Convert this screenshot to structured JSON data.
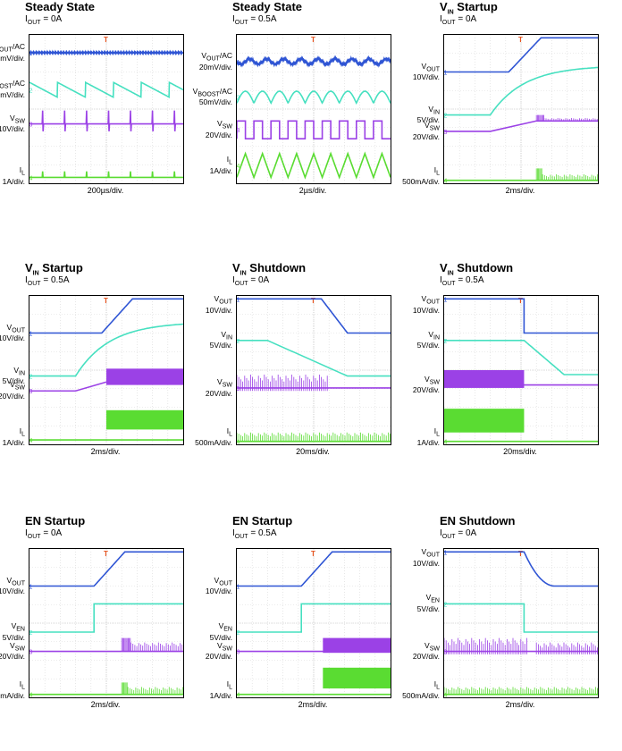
{
  "chart_data": [
    {
      "type": "line",
      "title": "Steady State",
      "condition": "IOUT = 0A",
      "xlabel": "200µs/div.",
      "channels": [
        {
          "label_main": "VOUT/AC",
          "label_sub": "20mV/div.",
          "color": "#2f55d4",
          "marker": "1",
          "kind": "flat_noise",
          "level": 0.12
        },
        {
          "label_main": "VBOOST/AC",
          "label_sub": "50mV/div.",
          "color": "#46e0c0",
          "marker": "2",
          "kind": "saw_down",
          "level": 0.37,
          "periods": 5.5
        },
        {
          "label_main": "VSW",
          "label_sub": "10V/div.",
          "color": "#9b41e6",
          "marker": "3",
          "kind": "spikes",
          "level": 0.6,
          "periods": 7
        },
        {
          "label_main": "IL",
          "label_sub": "1A/div.",
          "color": "#5adc32",
          "marker": "4",
          "kind": "flat_spikes",
          "level": 0.96,
          "periods": 7
        }
      ]
    },
    {
      "type": "line",
      "title": "Steady State",
      "condition": "IOUT = 0.5A",
      "xlabel": "2µs/div.",
      "channels": [
        {
          "label_main": "VOUT/AC",
          "label_sub": "20mV/div.",
          "color": "#2f55d4",
          "marker": "1",
          "kind": "wobble",
          "level": 0.18,
          "periods": 9
        },
        {
          "label_main": "VBOOST/AC",
          "label_sub": "50mV/div.",
          "color": "#46e0c0",
          "marker": "2",
          "kind": "bumps",
          "level": 0.42,
          "periods": 9
        },
        {
          "label_main": "VSW",
          "label_sub": "20V/div.",
          "color": "#9b41e6",
          "marker": "3",
          "kind": "square",
          "level": 0.64,
          "periods": 9
        },
        {
          "label_main": "IL",
          "label_sub": "1A/div.",
          "color": "#5adc32",
          "marker": "4",
          "kind": "triangle",
          "level": 0.88,
          "periods": 9
        }
      ]
    },
    {
      "type": "line",
      "title": "VIN Startup",
      "condition": "IOUT = 0A",
      "xlabel": "2ms/div.",
      "channels": [
        {
          "label_main": "VOUT",
          "label_sub": "10V/div.",
          "color": "#2f55d4",
          "marker": "1",
          "kind": "rise",
          "from": 0.25,
          "to": 0.02,
          "t0": 0.42,
          "t1": 0.63
        },
        {
          "label_main": "VIN",
          "label_sub": "5V/div.",
          "color": "#46e0c0",
          "marker": "2",
          "kind": "curve_rise",
          "from": 0.54,
          "to": 0.22,
          "t0": 0.3,
          "t1": 1.0
        },
        {
          "label_main": "VSW",
          "label_sub": "20V/div.",
          "color": "#9b41e6",
          "marker": "3",
          "kind": "ramp_then_burst",
          "from": 0.65,
          "to": 0.58,
          "t0": 0.3,
          "t1": 0.6,
          "burst_top": 0.54
        },
        {
          "label_main": "IL",
          "label_sub": "500mA/div.",
          "color": "#5adc32",
          "marker": "4",
          "kind": "flat_then_burst",
          "level": 0.98,
          "t0": 0.6,
          "burst_top": 0.9,
          "tail_top": 0.94
        }
      ]
    },
    {
      "type": "line",
      "title": "VIN Startup",
      "condition": "IOUT = 0.5A",
      "xlabel": "2ms/div.",
      "channels": [
        {
          "label_main": "VOUT",
          "label_sub": "10V/div.",
          "color": "#2f55d4",
          "marker": "1",
          "kind": "rise",
          "from": 0.25,
          "to": 0.02,
          "t0": 0.47,
          "t1": 0.67
        },
        {
          "label_main": "VIN",
          "label_sub": "5V/div.",
          "color": "#46e0c0",
          "marker": "2",
          "kind": "curve_rise",
          "from": 0.54,
          "to": 0.19,
          "t0": 0.3,
          "t1": 1.0
        },
        {
          "label_main": "VSW",
          "label_sub": "20V/div.",
          "color": "#9b41e6",
          "marker": "3",
          "kind": "ramp_then_block",
          "from": 0.64,
          "to": 0.58,
          "t0": 0.3,
          "t1": 0.5,
          "block_top": 0.49,
          "block_bot": 0.6
        },
        {
          "label_main": "IL",
          "label_sub": "1A/div.",
          "color": "#5adc32",
          "marker": "4",
          "kind": "flat_then_block",
          "level": 0.97,
          "t0": 0.5,
          "block_top": 0.77,
          "block_bot": 0.9
        }
      ]
    },
    {
      "type": "line",
      "title": "VIN Shutdown",
      "condition": "IOUT = 0A",
      "xlabel": "20ms/div.",
      "channels": [
        {
          "label_main": "VOUT",
          "label_sub": "10V/div.",
          "color": "#2f55d4",
          "marker": "1",
          "kind": "fall",
          "from": 0.02,
          "to": 0.25,
          "t0": 0.55,
          "t1": 0.72
        },
        {
          "label_main": "VIN",
          "label_sub": "5V/div.",
          "color": "#46e0c0",
          "marker": "2",
          "kind": "fall",
          "from": 0.3,
          "to": 0.54,
          "t0": 0.2,
          "t1": 0.72
        },
        {
          "label_main": "VSW",
          "label_sub": "20V/div.",
          "color": "#9b41e6",
          "marker": "3",
          "kind": "burst_then_flat",
          "level": 0.62,
          "t1": 0.6,
          "burst_top": 0.53
        },
        {
          "label_main": "IL",
          "label_sub": "500mA/div.",
          "color": "#5adc32",
          "marker": "4",
          "kind": "burst_bottom",
          "level": 0.98,
          "t1": 1.0,
          "burst_top": 0.92
        }
      ]
    },
    {
      "type": "line",
      "title": "VIN Shutdown",
      "condition": "IOUT = 0.5A",
      "xlabel": "20ms/div.",
      "channels": [
        {
          "label_main": "VOUT",
          "label_sub": "10V/div.",
          "color": "#2f55d4",
          "marker": "1",
          "kind": "step_down",
          "from": 0.02,
          "to": 0.25,
          "t0": 0.52
        },
        {
          "label_main": "VIN",
          "label_sub": "5V/div.",
          "color": "#46e0c0",
          "marker": "2",
          "kind": "fall",
          "from": 0.3,
          "to": 0.53,
          "t0": 0.52,
          "t1": 0.78
        },
        {
          "label_main": "VSW",
          "label_sub": "20V/div.",
          "color": "#9b41e6",
          "marker": "3",
          "kind": "block_then_flat",
          "level": 0.6,
          "t1": 0.52,
          "block_top": 0.5,
          "block_bot": 0.62
        },
        {
          "label_main": "IL",
          "label_sub": "1A/div.",
          "color": "#5adc32",
          "marker": "4",
          "kind": "block_then_flat",
          "level": 0.98,
          "t1": 0.52,
          "block_top": 0.76,
          "block_bot": 0.92
        }
      ]
    },
    {
      "type": "line",
      "title": "EN Startup",
      "condition": "IOUT = 0A",
      "xlabel": "2ms/div.",
      "channels": [
        {
          "label_main": "VOUT",
          "label_sub": "10V/div.",
          "color": "#2f55d4",
          "marker": "1",
          "kind": "rise",
          "from": 0.25,
          "to": 0.02,
          "t0": 0.42,
          "t1": 0.62
        },
        {
          "label_main": "VEN",
          "label_sub": "5V/div.",
          "color": "#46e0c0",
          "marker": "2",
          "kind": "step_up",
          "from": 0.56,
          "to": 0.37,
          "t0": 0.42
        },
        {
          "label_main": "VSW",
          "label_sub": "20V/div.",
          "color": "#9b41e6",
          "marker": "3",
          "kind": "flat_then_burst",
          "level": 0.69,
          "t0": 0.6,
          "burst_top": 0.6,
          "tail_top": 0.63,
          "block_w": 0.06
        },
        {
          "label_main": "IL",
          "label_sub": "500mA/div.",
          "color": "#5adc32",
          "marker": "4",
          "kind": "flat_then_burst",
          "level": 0.98,
          "t0": 0.6,
          "burst_top": 0.9,
          "tail_top": 0.93
        }
      ]
    },
    {
      "type": "line",
      "title": "EN Startup",
      "condition": "IOUT = 0.5A",
      "xlabel": "2ms/div.",
      "channels": [
        {
          "label_main": "VOUT",
          "label_sub": "10V/div.",
          "color": "#2f55d4",
          "marker": "1",
          "kind": "rise",
          "from": 0.25,
          "to": 0.02,
          "t0": 0.42,
          "t1": 0.62
        },
        {
          "label_main": "VEN",
          "label_sub": "5V/div.",
          "color": "#46e0c0",
          "marker": "2",
          "kind": "step_up",
          "from": 0.56,
          "to": 0.37,
          "t0": 0.42
        },
        {
          "label_main": "VSW",
          "label_sub": "20V/div.",
          "color": "#9b41e6",
          "marker": "3",
          "kind": "flat_then_block",
          "level": 0.69,
          "t0": 0.56,
          "block_top": 0.6,
          "block_bot": 0.7
        },
        {
          "label_main": "IL",
          "label_sub": "1A/div.",
          "color": "#5adc32",
          "marker": "4",
          "kind": "flat_then_block",
          "level": 0.98,
          "t0": 0.56,
          "block_top": 0.8,
          "block_bot": 0.94
        }
      ]
    },
    {
      "type": "line",
      "title": "EN Shutdown",
      "condition": "IOUT = 0A",
      "xlabel": "2ms/div.",
      "channels": [
        {
          "label_main": "VOUT",
          "label_sub": "10V/div.",
          "color": "#2f55d4",
          "marker": "1",
          "kind": "fall_curve",
          "from": 0.02,
          "to": 0.25,
          "t0": 0.52,
          "t1": 0.72
        },
        {
          "label_main": "VEN",
          "label_sub": "5V/div.",
          "color": "#46e0c0",
          "marker": "2",
          "kind": "step_down",
          "from": 0.37,
          "to": 0.56,
          "t0": 0.52
        },
        {
          "label_main": "VSW",
          "label_sub": "20V/div.",
          "color": "#9b41e6",
          "marker": "3",
          "kind": "spikes_then_flat",
          "level": 0.69,
          "t1": 0.55,
          "burst_top": 0.6,
          "tail": true
        },
        {
          "label_main": "IL",
          "label_sub": "500mA/div.",
          "color": "#5adc32",
          "marker": "4",
          "kind": "burst_bottom",
          "level": 0.98,
          "t1": 1.0,
          "burst_top": 0.93
        }
      ]
    }
  ]
}
